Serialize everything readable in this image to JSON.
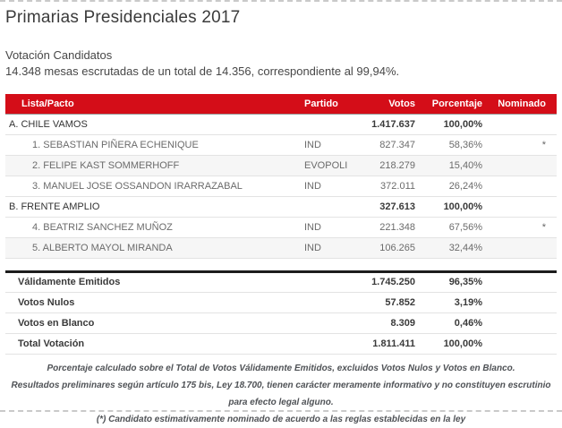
{
  "page": {
    "title": "Primarias Presidenciales 2017",
    "subtitle": "Votación Candidatos",
    "mesas_line": "14.348 mesas escrutadas de un total de 14.356, correspondiente al 99,94%."
  },
  "colors": {
    "accent_red": "#d40d18",
    "header_text": "#ffffff",
    "summary_rule": "#1c1c1c"
  },
  "results_table": {
    "headers": {
      "lista": "Lista/Pacto",
      "partido": "Partido",
      "votos": "Votos",
      "porcentaje": "Porcentaje",
      "nominado": "Nominado"
    },
    "rows": [
      {
        "type": "group",
        "lista": "A. CHILE VAMOS",
        "partido": "",
        "votos": "1.417.637",
        "porcentaje": "100,00%",
        "nominado": ""
      },
      {
        "type": "candidate",
        "lista": "1. SEBASTIAN PIÑERA ECHENIQUE",
        "partido": "IND",
        "votos": "827.347",
        "porcentaje": "58,36%",
        "nominado": "*"
      },
      {
        "type": "candidate",
        "lista": "2. FELIPE KAST SOMMERHOFF",
        "partido": "EVOPOLI",
        "votos": "218.279",
        "porcentaje": "15,40%",
        "nominado": ""
      },
      {
        "type": "candidate",
        "lista": "3. MANUEL JOSE OSSANDON IRARRAZABAL",
        "partido": "IND",
        "votos": "372.011",
        "porcentaje": "26,24%",
        "nominado": ""
      },
      {
        "type": "group",
        "lista": "B. FRENTE AMPLIO",
        "partido": "",
        "votos": "327.613",
        "porcentaje": "100,00%",
        "nominado": ""
      },
      {
        "type": "candidate",
        "lista": "4. BEATRIZ SANCHEZ MUÑOZ",
        "partido": "IND",
        "votos": "221.348",
        "porcentaje": "67,56%",
        "nominado": "*"
      },
      {
        "type": "candidate",
        "lista": "5. ALBERTO MAYOL MIRANDA",
        "partido": "IND",
        "votos": "106.265",
        "porcentaje": "32,44%",
        "nominado": ""
      }
    ]
  },
  "summary_table": {
    "rows": [
      {
        "label": "Válidamente Emitidos",
        "votos": "1.745.250",
        "porcentaje": "96,35%"
      },
      {
        "label": "Votos Nulos",
        "votos": "57.852",
        "porcentaje": "3,19%"
      },
      {
        "label": "Votos en Blanco",
        "votos": "8.309",
        "porcentaje": "0,46%"
      },
      {
        "label": "Total Votación",
        "votos": "1.811.411",
        "porcentaje": "100,00%"
      }
    ]
  },
  "notes": [
    "Porcentaje calculado sobre el Total de Votos Válidamente Emitidos, excluidos Votos Nulos y Votos en Blanco.",
    "Resultados preliminares según artículo 175 bis, Ley 18.700, tienen carácter meramente informativo y no constituyen escrutinio para efecto legal alguno.",
    "(*) Candidato estimativamente nominado de acuerdo a las reglas establecidas en la ley"
  ]
}
